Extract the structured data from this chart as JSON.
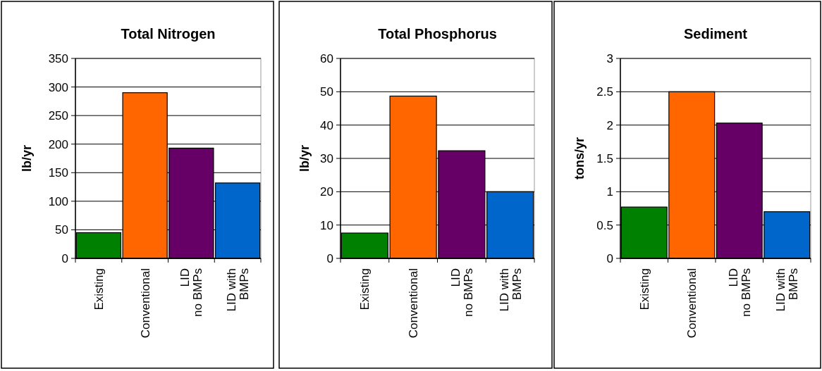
{
  "chart_data": [
    {
      "type": "bar",
      "title": "Total Nitrogen",
      "ylabel": "lb/yr",
      "categories": [
        "Existing",
        "Conventional",
        "LID\nno BMPs",
        "LID with\nBMPs"
      ],
      "values": [
        45,
        290,
        193,
        132
      ],
      "colors": [
        "#008000",
        "#ff6600",
        "#660066",
        "#0066cc"
      ],
      "ylim": [
        0,
        350
      ],
      "yticks": [
        0,
        50,
        100,
        150,
        200,
        250,
        300,
        350
      ],
      "grid": "y"
    },
    {
      "type": "bar",
      "title": "Total Phosphorus",
      "ylabel": "lb/yr",
      "categories": [
        "Existing",
        "Conventional",
        "LID\nno BMPs",
        "LID with\nBMPs"
      ],
      "values": [
        7.6,
        48.7,
        32.3,
        20
      ],
      "colors": [
        "#008000",
        "#ff6600",
        "#660066",
        "#0066cc"
      ],
      "ylim": [
        0,
        60
      ],
      "yticks": [
        0,
        10,
        20,
        30,
        40,
        50,
        60
      ],
      "grid": "y"
    },
    {
      "type": "bar",
      "title": "Sediment",
      "ylabel": "tons/yr",
      "categories": [
        "Existing",
        "Conventional",
        "LID\nno BMPs",
        "LID with\nBMPs"
      ],
      "values": [
        0.77,
        2.5,
        2.03,
        0.7
      ],
      "colors": [
        "#008000",
        "#ff6600",
        "#660066",
        "#0066cc"
      ],
      "ylim": [
        0,
        3
      ],
      "yticks": [
        0,
        0.5,
        1,
        1.5,
        2,
        2.5,
        3
      ],
      "grid": "y"
    }
  ]
}
